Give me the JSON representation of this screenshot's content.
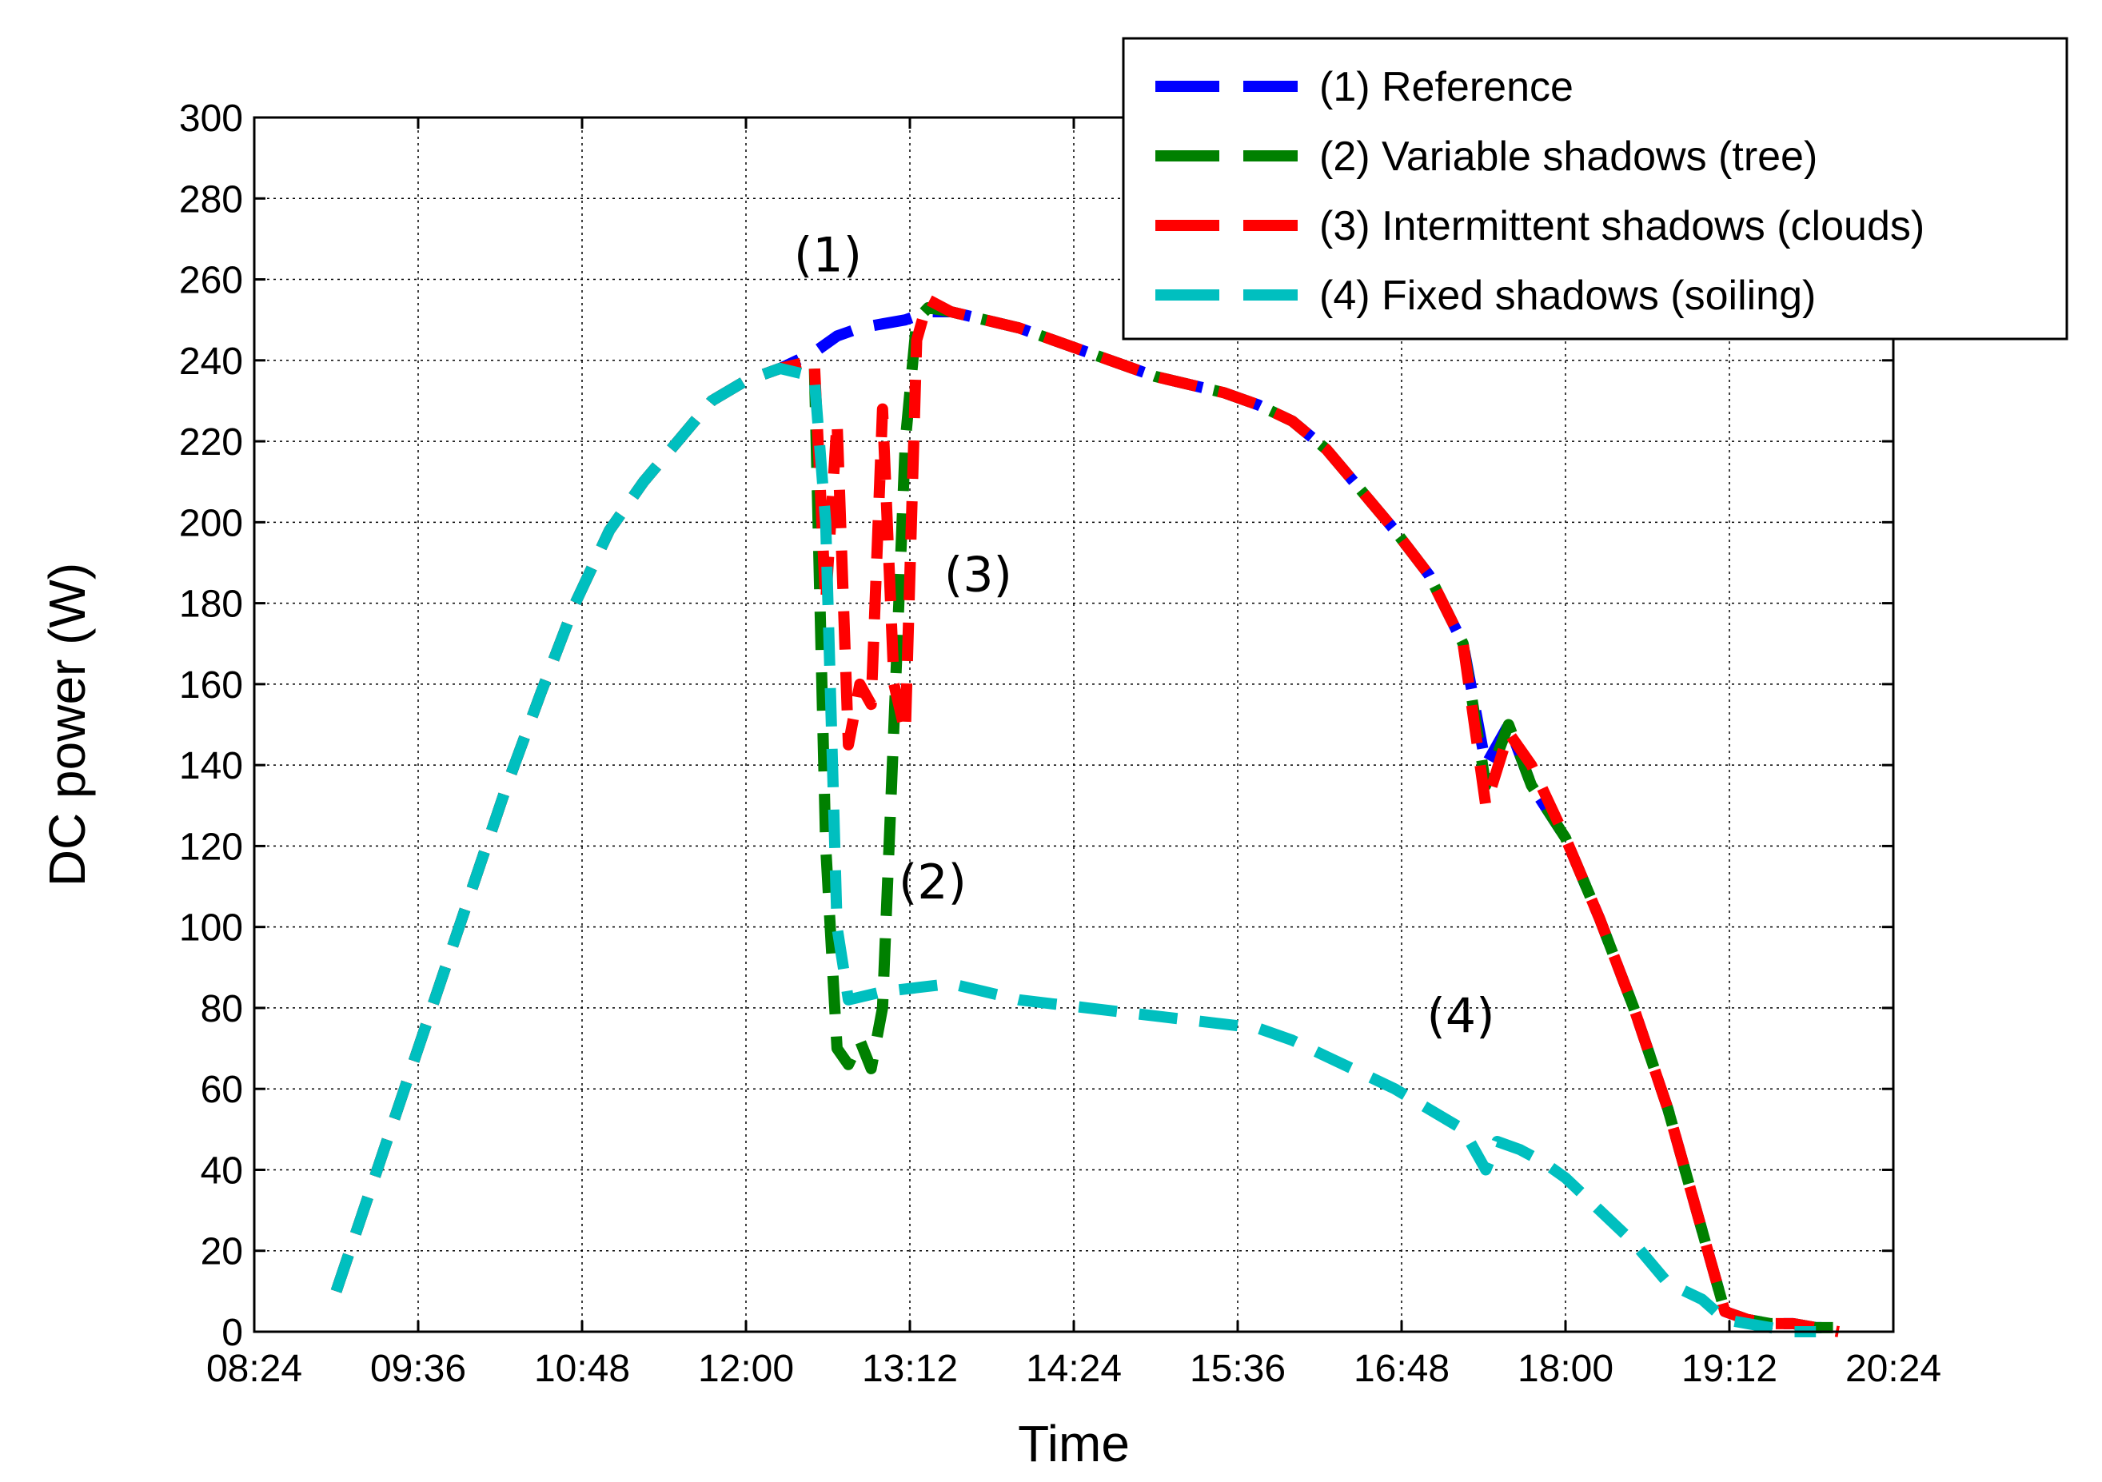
{
  "chart_data": {
    "type": "line",
    "title": "",
    "xlabel": "Time",
    "ylabel": "DC power (W)",
    "xlim": [
      "08:24",
      "20:24"
    ],
    "ylim": [
      0,
      300
    ],
    "grid": true,
    "legend_position": "top-right",
    "x_ticks": [
      "08:24",
      "09:36",
      "10:48",
      "12:00",
      "13:12",
      "14:24",
      "15:36",
      "16:48",
      "18:00",
      "19:12",
      "20:24"
    ],
    "y_ticks": [
      0,
      20,
      40,
      60,
      80,
      100,
      120,
      140,
      160,
      180,
      200,
      220,
      240,
      260,
      280,
      300
    ],
    "annotations": [
      {
        "text": "(1)",
        "x": "12:36",
        "y": 262
      },
      {
        "text": "(3)",
        "x": "13:42",
        "y": 183
      },
      {
        "text": "(2)",
        "x": "13:22",
        "y": 107
      },
      {
        "text": "(4)",
        "x": "17:14",
        "y": 74
      }
    ],
    "series": [
      {
        "name": "(1) Reference",
        "color": "#0000ff",
        "x": [
          "09:00",
          "09:15",
          "09:30",
          "09:45",
          "10:00",
          "10:15",
          "10:30",
          "10:45",
          "11:00",
          "11:15",
          "11:30",
          "11:45",
          "12:00",
          "12:15",
          "12:30",
          "12:40",
          "12:50",
          "13:00",
          "13:10",
          "13:20",
          "13:30",
          "13:45",
          "14:00",
          "14:15",
          "14:30",
          "14:45",
          "15:00",
          "15:15",
          "15:30",
          "15:45",
          "16:00",
          "16:15",
          "16:30",
          "16:45",
          "17:00",
          "17:15",
          "17:25",
          "17:35",
          "17:45",
          "18:00",
          "18:15",
          "18:30",
          "18:45",
          "19:00",
          "19:10",
          "19:20",
          "19:30",
          "19:40",
          "19:50",
          "20:00"
        ],
        "y": [
          10,
          35,
          60,
          85,
          110,
          135,
          158,
          180,
          198,
          210,
          220,
          230,
          235,
          238,
          242,
          246,
          248,
          249,
          250,
          252,
          252,
          250,
          248,
          245,
          242,
          239,
          236,
          234,
          232,
          229,
          225,
          218,
          208,
          198,
          187,
          170,
          140,
          150,
          135,
          122,
          102,
          80,
          55,
          25,
          5,
          3,
          2,
          2,
          1,
          1
        ]
      },
      {
        "name": "(2) Variable shadows (tree)",
        "color": "#008000",
        "x": [
          "09:00",
          "09:15",
          "09:30",
          "09:45",
          "10:00",
          "10:15",
          "10:30",
          "10:45",
          "11:00",
          "11:15",
          "11:30",
          "11:45",
          "12:00",
          "12:15",
          "12:30",
          "12:35",
          "12:40",
          "12:45",
          "12:50",
          "12:55",
          "13:00",
          "13:05",
          "13:10",
          "13:15",
          "13:20",
          "13:30",
          "13:45",
          "14:00",
          "14:15",
          "14:30",
          "14:45",
          "15:00",
          "15:15",
          "15:30",
          "15:45",
          "16:00",
          "16:15",
          "16:30",
          "16:45",
          "17:00",
          "17:15",
          "17:25",
          "17:35",
          "17:45",
          "18:00",
          "18:15",
          "18:30",
          "18:45",
          "19:00",
          "19:10",
          "19:20",
          "19:30",
          "19:40",
          "19:50",
          "20:00"
        ],
        "y": [
          10,
          35,
          60,
          85,
          110,
          135,
          158,
          180,
          198,
          210,
          220,
          230,
          235,
          238,
          240,
          120,
          70,
          66,
          72,
          65,
          80,
          150,
          220,
          250,
          253,
          252,
          250,
          248,
          245,
          242,
          239,
          236,
          234,
          232,
          229,
          225,
          218,
          208,
          198,
          187,
          170,
          135,
          150,
          135,
          122,
          102,
          80,
          55,
          25,
          5,
          3,
          2,
          2,
          1,
          1
        ]
      },
      {
        "name": "(3) Intermittent shadows (clouds)",
        "color": "#ff0000",
        "x": [
          "09:00",
          "09:15",
          "09:30",
          "09:45",
          "10:00",
          "10:15",
          "10:30",
          "10:45",
          "11:00",
          "11:15",
          "11:30",
          "11:45",
          "12:00",
          "12:15",
          "12:30",
          "12:35",
          "12:40",
          "12:45",
          "12:50",
          "12:55",
          "13:00",
          "13:05",
          "13:10",
          "13:15",
          "13:20",
          "13:30",
          "13:45",
          "14:00",
          "14:15",
          "14:30",
          "14:45",
          "15:00",
          "15:15",
          "15:30",
          "15:45",
          "16:00",
          "16:15",
          "16:30",
          "16:45",
          "17:00",
          "17:15",
          "17:25",
          "17:35",
          "17:45",
          "18:00",
          "18:15",
          "18:30",
          "18:45",
          "19:00",
          "19:10",
          "19:20",
          "19:30",
          "19:40",
          "19:50",
          "20:00"
        ],
        "y": [
          10,
          35,
          60,
          85,
          110,
          135,
          158,
          180,
          198,
          210,
          220,
          230,
          235,
          238,
          240,
          180,
          225,
          145,
          160,
          155,
          228,
          160,
          148,
          245,
          255,
          252,
          250,
          248,
          245,
          242,
          239,
          236,
          234,
          232,
          229,
          225,
          218,
          208,
          198,
          187,
          170,
          130,
          148,
          140,
          122,
          102,
          80,
          55,
          25,
          5,
          3,
          2,
          2,
          1,
          0
        ]
      },
      {
        "name": "(4) Fixed shadows (soiling)",
        "color": "#00bfbf",
        "x": [
          "09:00",
          "09:15",
          "09:30",
          "09:45",
          "10:00",
          "10:15",
          "10:30",
          "10:45",
          "11:00",
          "11:15",
          "11:30",
          "11:45",
          "12:00",
          "12:15",
          "12:30",
          "12:35",
          "12:40",
          "12:45",
          "13:00",
          "13:15",
          "13:30",
          "13:45",
          "14:00",
          "14:15",
          "14:30",
          "14:45",
          "15:00",
          "15:15",
          "15:30",
          "15:45",
          "16:00",
          "16:15",
          "16:30",
          "16:45",
          "17:00",
          "17:15",
          "17:25",
          "17:30",
          "17:40",
          "17:50",
          "18:00",
          "18:15",
          "18:30",
          "18:45",
          "19:00",
          "19:10",
          "19:20",
          "19:30",
          "19:40",
          "19:50"
        ],
        "y": [
          10,
          35,
          60,
          85,
          110,
          135,
          158,
          180,
          198,
          210,
          220,
          230,
          235,
          238,
          236,
          200,
          100,
          82,
          84,
          85,
          86,
          84,
          82,
          81,
          80,
          79,
          78,
          77,
          76,
          75,
          72,
          68,
          64,
          60,
          55,
          50,
          40,
          47,
          45,
          42,
          38,
          30,
          22,
          12,
          8,
          3,
          2,
          1,
          0,
          0
        ]
      }
    ]
  }
}
